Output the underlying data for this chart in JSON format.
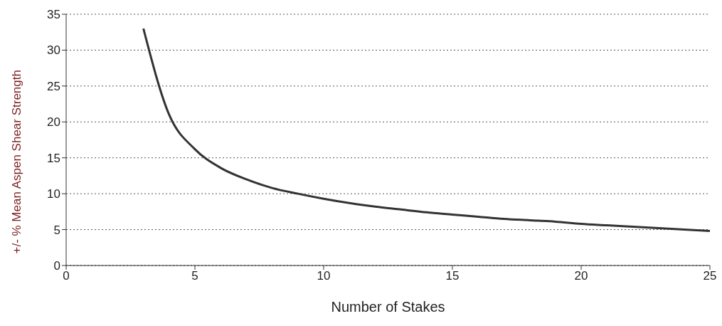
{
  "chart_data": {
    "type": "line",
    "xlabel": "Number of Stakes",
    "ylabel": "+/- % Mean Aspen Shear Strength",
    "x": [
      3,
      4,
      5,
      6,
      7,
      8,
      9,
      10,
      11,
      12,
      13,
      14,
      15,
      16,
      17,
      18,
      19,
      20,
      21,
      22,
      23,
      24,
      25
    ],
    "series": [
      {
        "color": "#333333",
        "values": [
          33,
          21,
          16.2,
          13.6,
          12,
          10.8,
          10,
          9.3,
          8.7,
          8.2,
          7.8,
          7.4,
          7.1,
          6.8,
          6.5,
          6.3,
          6.1,
          5.8,
          5.6,
          5.4,
          5.2,
          5,
          4.8
        ]
      }
    ],
    "xlim": [
      0,
      25
    ],
    "xticks": [
      0,
      5,
      10,
      15,
      20,
      25
    ],
    "ylim": [
      0,
      35
    ],
    "yticks": [
      0,
      5,
      10,
      15,
      20,
      25,
      30,
      35
    ],
    "grid": "y",
    "legend": false,
    "marker": "none",
    "line_style": "solid"
  }
}
